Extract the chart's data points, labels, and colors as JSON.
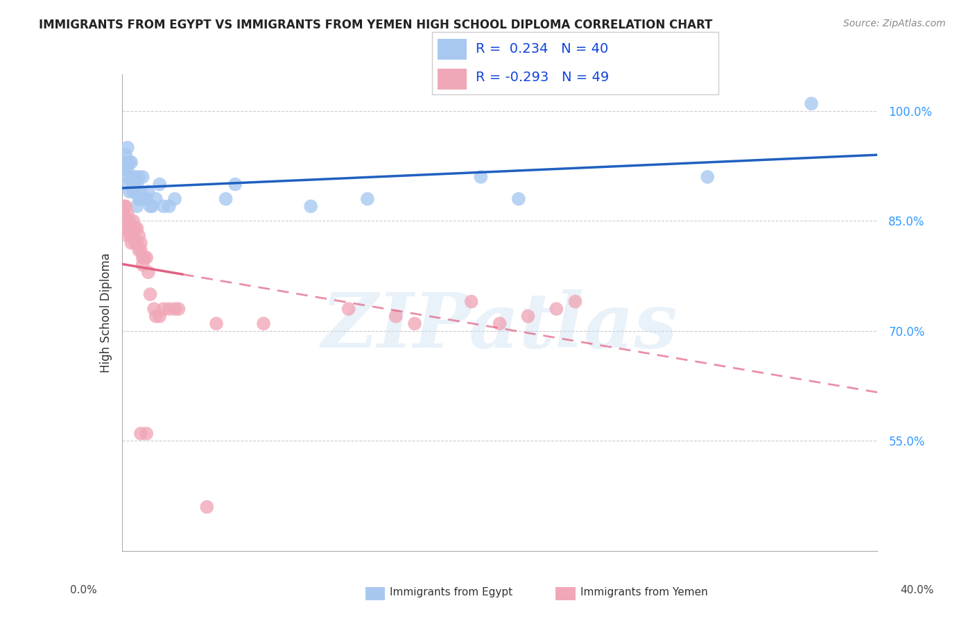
{
  "title": "IMMIGRANTS FROM EGYPT VS IMMIGRANTS FROM YEMEN HIGH SCHOOL DIPLOMA CORRELATION CHART",
  "source": "Source: ZipAtlas.com",
  "ylabel": "High School Diploma",
  "right_yticks": [
    100.0,
    85.0,
    70.0,
    55.0
  ],
  "xlim": [
    0.0,
    0.4
  ],
  "ylim": [
    0.4,
    1.05
  ],
  "egypt_R": 0.234,
  "egypt_N": 40,
  "yemen_R": -0.293,
  "yemen_N": 49,
  "egypt_color": "#A8C8F0",
  "yemen_color": "#F0A8B8",
  "egypt_line_color": "#2060C0",
  "yemen_line_color": "#E06080",
  "watermark": "ZIPatlas",
  "egypt_x": [
    0.001,
    0.001,
    0.002,
    0.002,
    0.003,
    0.003,
    0.003,
    0.004,
    0.004,
    0.005,
    0.005,
    0.006,
    0.006,
    0.007,
    0.007,
    0.008,
    0.008,
    0.009,
    0.009,
    0.01,
    0.01,
    0.011,
    0.012,
    0.013,
    0.014,
    0.015,
    0.016,
    0.018,
    0.02,
    0.022,
    0.025,
    0.028,
    0.055,
    0.06,
    0.1,
    0.13,
    0.19,
    0.21,
    0.31,
    0.365
  ],
  "egypt_y": [
    0.9,
    0.92,
    0.93,
    0.94,
    0.91,
    0.92,
    0.95,
    0.89,
    0.93,
    0.91,
    0.93,
    0.89,
    0.9,
    0.89,
    0.91,
    0.9,
    0.87,
    0.91,
    0.88,
    0.88,
    0.89,
    0.91,
    0.88,
    0.88,
    0.89,
    0.87,
    0.87,
    0.88,
    0.9,
    0.87,
    0.87,
    0.88,
    0.88,
    0.9,
    0.87,
    0.88,
    0.91,
    0.88,
    0.91,
    1.01
  ],
  "yemen_x": [
    0.001,
    0.001,
    0.001,
    0.002,
    0.002,
    0.003,
    0.003,
    0.003,
    0.004,
    0.004,
    0.005,
    0.005,
    0.005,
    0.006,
    0.006,
    0.007,
    0.007,
    0.008,
    0.008,
    0.009,
    0.009,
    0.01,
    0.01,
    0.011,
    0.011,
    0.012,
    0.013,
    0.014,
    0.015,
    0.017,
    0.018,
    0.02,
    0.022,
    0.025,
    0.028,
    0.03,
    0.05,
    0.075,
    0.12,
    0.145,
    0.155,
    0.185,
    0.2,
    0.215,
    0.23,
    0.24,
    0.01,
    0.013,
    0.045
  ],
  "yemen_y": [
    0.87,
    0.86,
    0.84,
    0.87,
    0.84,
    0.86,
    0.85,
    0.83,
    0.85,
    0.84,
    0.84,
    0.83,
    0.82,
    0.85,
    0.83,
    0.84,
    0.82,
    0.84,
    0.82,
    0.83,
    0.81,
    0.82,
    0.81,
    0.8,
    0.79,
    0.8,
    0.8,
    0.78,
    0.75,
    0.73,
    0.72,
    0.72,
    0.73,
    0.73,
    0.73,
    0.73,
    0.71,
    0.71,
    0.73,
    0.72,
    0.71,
    0.74,
    0.71,
    0.72,
    0.73,
    0.74,
    0.56,
    0.56,
    0.46
  ],
  "background_color": "#FFFFFF",
  "grid_color": "#CCCCCC"
}
